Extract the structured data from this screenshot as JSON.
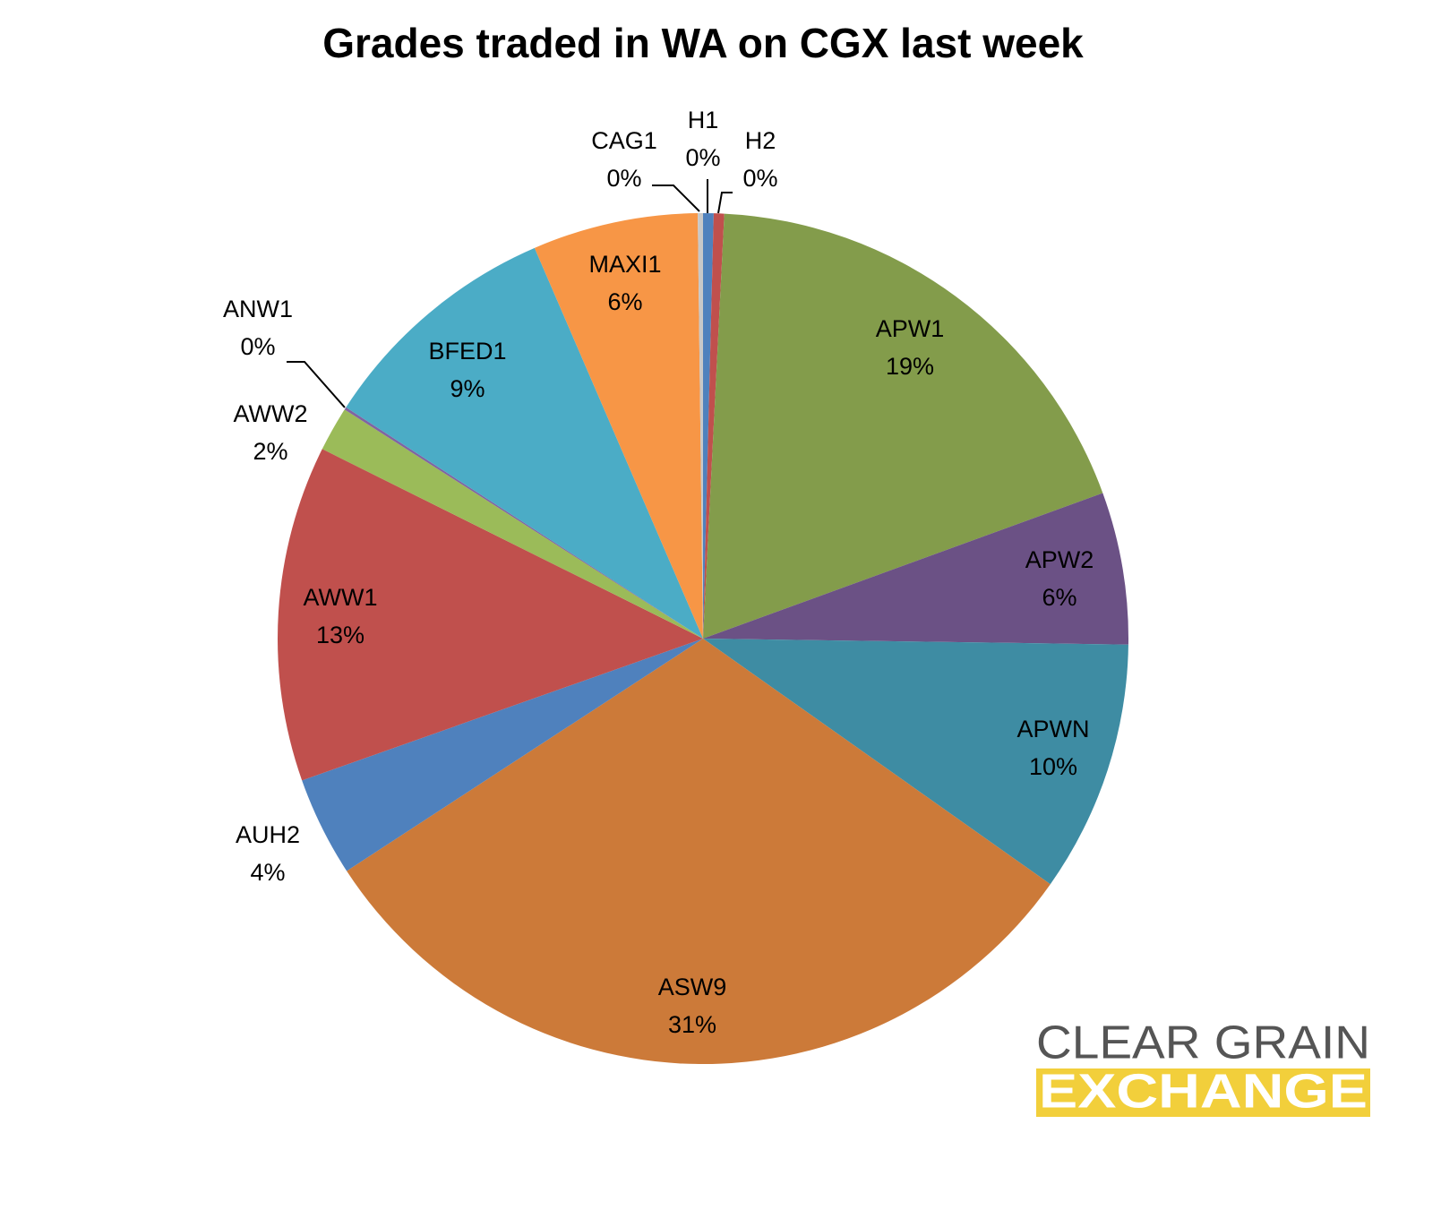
{
  "chart_data": {
    "type": "pie",
    "title": "Grades traded in WA on CGX last week",
    "categories": [
      "H1",
      "H2",
      "APW1",
      "APW2",
      "APWN",
      "ASW9",
      "AUH2",
      "AWW1",
      "AWW2",
      "ANW1",
      "BFED1",
      "MAXI1",
      "CAG1"
    ],
    "values": [
      0.4,
      0.4,
      18.7,
      5.8,
      9.6,
      31.1,
      3.8,
      12.8,
      1.7,
      0.1,
      9.4,
      6.3,
      0.2
    ],
    "value_labels": [
      "0%",
      "0%",
      "19%",
      "6%",
      "10%",
      "31%",
      "4%",
      "13%",
      "2%",
      "0%",
      "9%",
      "6%",
      "0%"
    ],
    "colors": [
      "#4f81bd",
      "#c0504d",
      "#839c4b",
      "#6b5185",
      "#3e8ca3",
      "#cc7a39",
      "#4f81bd",
      "#c0504d",
      "#9bbb59",
      "#8064a2",
      "#4bacc6",
      "#f79646",
      "#c8c8c8"
    ]
  },
  "logo": {
    "line1": "CLEAR GRAIN",
    "line2": "EXCHANGE"
  }
}
